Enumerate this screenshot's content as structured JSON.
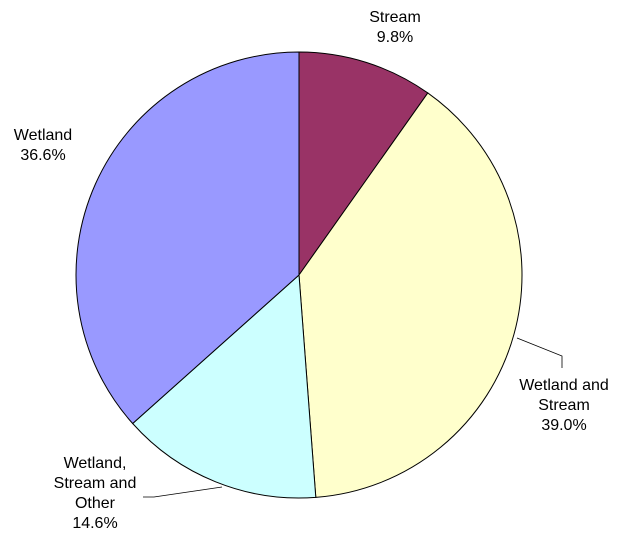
{
  "chart_data": {
    "type": "pie",
    "title": "",
    "start_angle_deg": 0,
    "direction": "clockwise",
    "slices": [
      {
        "name": "Stream",
        "value": 9.8,
        "label_lines": [
          "Stream"
        ],
        "value_label": "9.8%",
        "color": "#993366"
      },
      {
        "name": "Wetland and Stream",
        "value": 39.0,
        "label_lines": [
          "Wetland and",
          "Stream"
        ],
        "value_label": "39.0%",
        "color": "#FFFFCC"
      },
      {
        "name": "Wetland, Stream and Other",
        "value": 14.6,
        "label_lines": [
          "Wetland,",
          "Stream and",
          "Other"
        ],
        "value_label": "14.6%",
        "color": "#CCFFFF"
      },
      {
        "name": "Wetland",
        "value": 36.6,
        "label_lines": [
          "Wetland"
        ],
        "value_label": "36.6%",
        "color": "#9999FF"
      }
    ],
    "legend": "none"
  }
}
